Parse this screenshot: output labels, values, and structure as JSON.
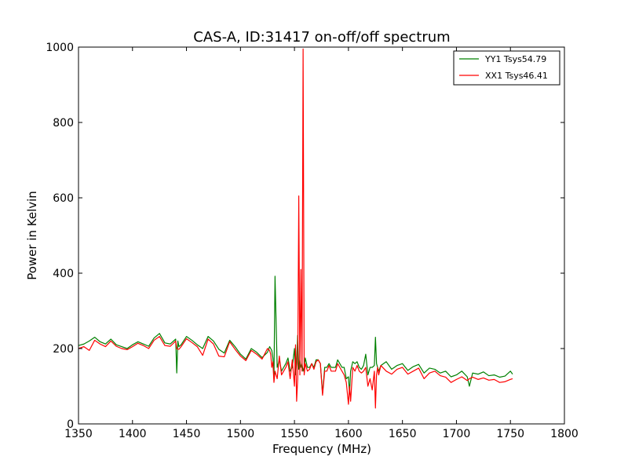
{
  "chart_data": {
    "type": "line",
    "title": "CAS-A, ID:31417 on-off/off spectrum",
    "xlabel": "Frequency (MHz)",
    "ylabel": "Power in Kelvin",
    "xlim": [
      1350,
      1800
    ],
    "ylim": [
      0,
      1000
    ],
    "xticks": [
      "1350",
      "1400",
      "1450",
      "1500",
      "1550",
      "1600",
      "1650",
      "1700",
      "1750",
      "1800"
    ],
    "yticks": [
      "0",
      "200",
      "400",
      "600",
      "800",
      "1000"
    ],
    "grid": false,
    "legend_position": "top-right",
    "series": [
      {
        "name": "YY1 Tsys54.79",
        "color": "#008000",
        "x": [
          1350,
          1355,
          1360,
          1365,
          1370,
          1375,
          1380,
          1385,
          1390,
          1395,
          1400,
          1405,
          1410,
          1415,
          1420,
          1425,
          1430,
          1435,
          1440,
          1441,
          1442,
          1443,
          1445,
          1450,
          1455,
          1460,
          1465,
          1470,
          1475,
          1480,
          1485,
          1490,
          1495,
          1500,
          1505,
          1510,
          1515,
          1520,
          1525,
          1527,
          1528,
          1529,
          1530,
          1531,
          1532,
          1534,
          1536,
          1538,
          1540,
          1542,
          1544,
          1546,
          1548,
          1550,
          1551,
          1552,
          1553,
          1554,
          1555,
          1556,
          1557,
          1558,
          1559,
          1560,
          1562,
          1564,
          1566,
          1568,
          1570,
          1572,
          1574,
          1576,
          1578,
          1580,
          1582,
          1584,
          1586,
          1588,
          1590,
          1592,
          1594,
          1596,
          1598,
          1600,
          1601,
          1602,
          1604,
          1606,
          1608,
          1610,
          1612,
          1614,
          1616,
          1618,
          1620,
          1622,
          1624,
          1625,
          1626,
          1627,
          1628,
          1630,
          1635,
          1640,
          1645,
          1650,
          1655,
          1660,
          1665,
          1670,
          1675,
          1680,
          1685,
          1690,
          1695,
          1700,
          1705,
          1710,
          1712,
          1715,
          1720,
          1725,
          1730,
          1735,
          1740,
          1745,
          1750,
          1752
        ],
        "y": [
          208,
          212,
          220,
          230,
          218,
          212,
          225,
          210,
          205,
          200,
          210,
          218,
          212,
          206,
          228,
          240,
          215,
          212,
          225,
          135,
          220,
          205,
          210,
          232,
          222,
          210,
          200,
          232,
          220,
          198,
          188,
          222,
          205,
          185,
          172,
          200,
          190,
          176,
          190,
          205,
          200,
          195,
          175,
          120,
          392,
          150,
          170,
          140,
          150,
          160,
          175,
          140,
          150,
          200,
          130,
          160,
          235,
          145,
          170,
          150,
          160,
          140,
          150,
          175,
          150,
          150,
          160,
          150,
          170,
          170,
          160,
          80,
          150,
          150,
          160,
          150,
          150,
          150,
          170,
          160,
          150,
          150,
          120,
          125,
          80,
          140,
          165,
          160,
          165,
          150,
          145,
          155,
          185,
          130,
          150,
          150,
          155,
          230,
          160,
          150,
          140,
          155,
          165,
          145,
          155,
          160,
          142,
          152,
          158,
          135,
          148,
          145,
          135,
          140,
          125,
          130,
          140,
          125,
          100,
          135,
          132,
          138,
          128,
          130,
          124,
          127,
          140,
          132
        ]
      },
      {
        "name": "XX1 Tsys46.41",
        "color": "#ff0000",
        "x": [
          1350,
          1355,
          1360,
          1365,
          1370,
          1375,
          1380,
          1385,
          1390,
          1395,
          1400,
          1405,
          1410,
          1415,
          1420,
          1425,
          1430,
          1435,
          1440,
          1441,
          1442,
          1443,
          1445,
          1450,
          1455,
          1460,
          1465,
          1470,
          1475,
          1480,
          1485,
          1490,
          1495,
          1500,
          1505,
          1510,
          1515,
          1520,
          1525,
          1527,
          1528,
          1529,
          1530,
          1531,
          1532,
          1534,
          1536,
          1538,
          1540,
          1542,
          1544,
          1546,
          1548,
          1550,
          1551,
          1552,
          1553,
          1554,
          1555,
          1556,
          1557,
          1558,
          1559,
          1560,
          1562,
          1564,
          1566,
          1568,
          1570,
          1572,
          1574,
          1576,
          1578,
          1580,
          1582,
          1584,
          1586,
          1588,
          1590,
          1592,
          1594,
          1596,
          1598,
          1600,
          1601,
          1602,
          1604,
          1606,
          1608,
          1610,
          1612,
          1614,
          1616,
          1618,
          1620,
          1622,
          1624,
          1625,
          1626,
          1627,
          1628,
          1630,
          1635,
          1640,
          1645,
          1650,
          1655,
          1660,
          1665,
          1670,
          1675,
          1680,
          1685,
          1690,
          1695,
          1700,
          1705,
          1710,
          1712,
          1715,
          1720,
          1725,
          1730,
          1735,
          1740,
          1745,
          1750,
          1752
        ],
        "y": [
          200,
          205,
          195,
          222,
          212,
          205,
          220,
          206,
          200,
          197,
          205,
          214,
          208,
          200,
          222,
          232,
          208,
          206,
          220,
          200,
          198,
          198,
          205,
          226,
          216,
          205,
          182,
          225,
          212,
          180,
          178,
          218,
          198,
          180,
          168,
          195,
          185,
          172,
          200,
          195,
          185,
          150,
          165,
          110,
          140,
          120,
          180,
          130,
          140,
          150,
          165,
          120,
          170,
          100,
          210,
          60,
          120,
          605,
          130,
          410,
          140,
          995,
          130,
          160,
          140,
          145,
          160,
          145,
          165,
          170,
          160,
          76,
          140,
          140,
          155,
          140,
          140,
          140,
          160,
          150,
          140,
          130,
          110,
          52,
          100,
          60,
          150,
          140,
          155,
          140,
          135,
          140,
          150,
          100,
          120,
          90,
          140,
          42,
          130,
          150,
          130,
          155,
          140,
          132,
          145,
          150,
          132,
          140,
          148,
          120,
          135,
          140,
          128,
          124,
          110,
          118,
          125,
          115,
          120,
          124,
          118,
          122,
          116,
          118,
          110,
          112,
          118,
          120
        ]
      }
    ]
  }
}
